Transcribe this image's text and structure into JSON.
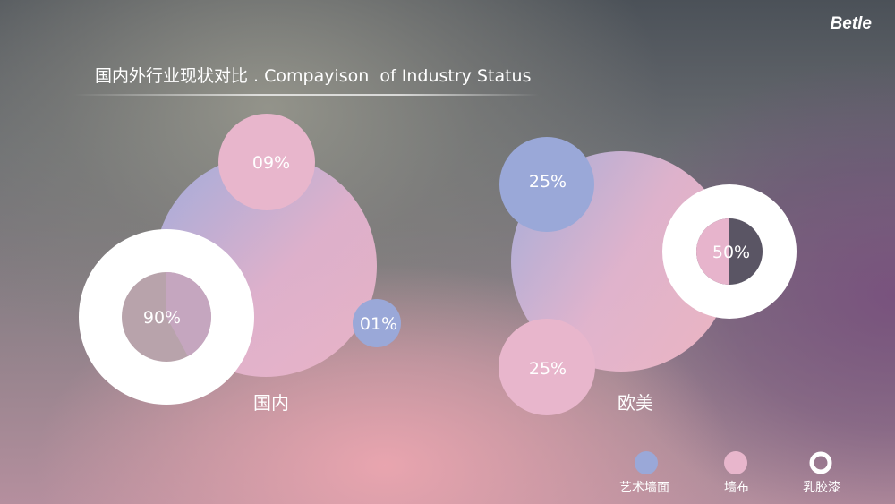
{
  "brand": "Betle",
  "title": "国内外行业现状对比 . Compayison  of Industry Status",
  "colors": {
    "art_wall": "#9aa8d8",
    "wallcloth": "#e8b6cc",
    "latex": "#ffffff"
  },
  "chart_data": [
    {
      "type": "pie",
      "region": "国内",
      "categories": [
        "乳胶漆",
        "墙布",
        "艺术墙面"
      ],
      "values": [
        90,
        9,
        1
      ],
      "labels": [
        "90%",
        "09%",
        "01%"
      ]
    },
    {
      "type": "pie",
      "region": "欧美",
      "categories": [
        "乳胶漆",
        "墙布",
        "艺术墙面"
      ],
      "values": [
        50,
        25,
        25
      ],
      "labels": [
        "50%",
        "25%",
        "25%"
      ]
    }
  ],
  "legend": [
    {
      "label": "艺术墙面",
      "icon": "filled-circle",
      "color": "#9aa8d8"
    },
    {
      "label": "墙布",
      "icon": "filled-circle",
      "color": "#e8b6cc"
    },
    {
      "label": "乳胶漆",
      "icon": "ring",
      "color": "#ffffff"
    }
  ]
}
